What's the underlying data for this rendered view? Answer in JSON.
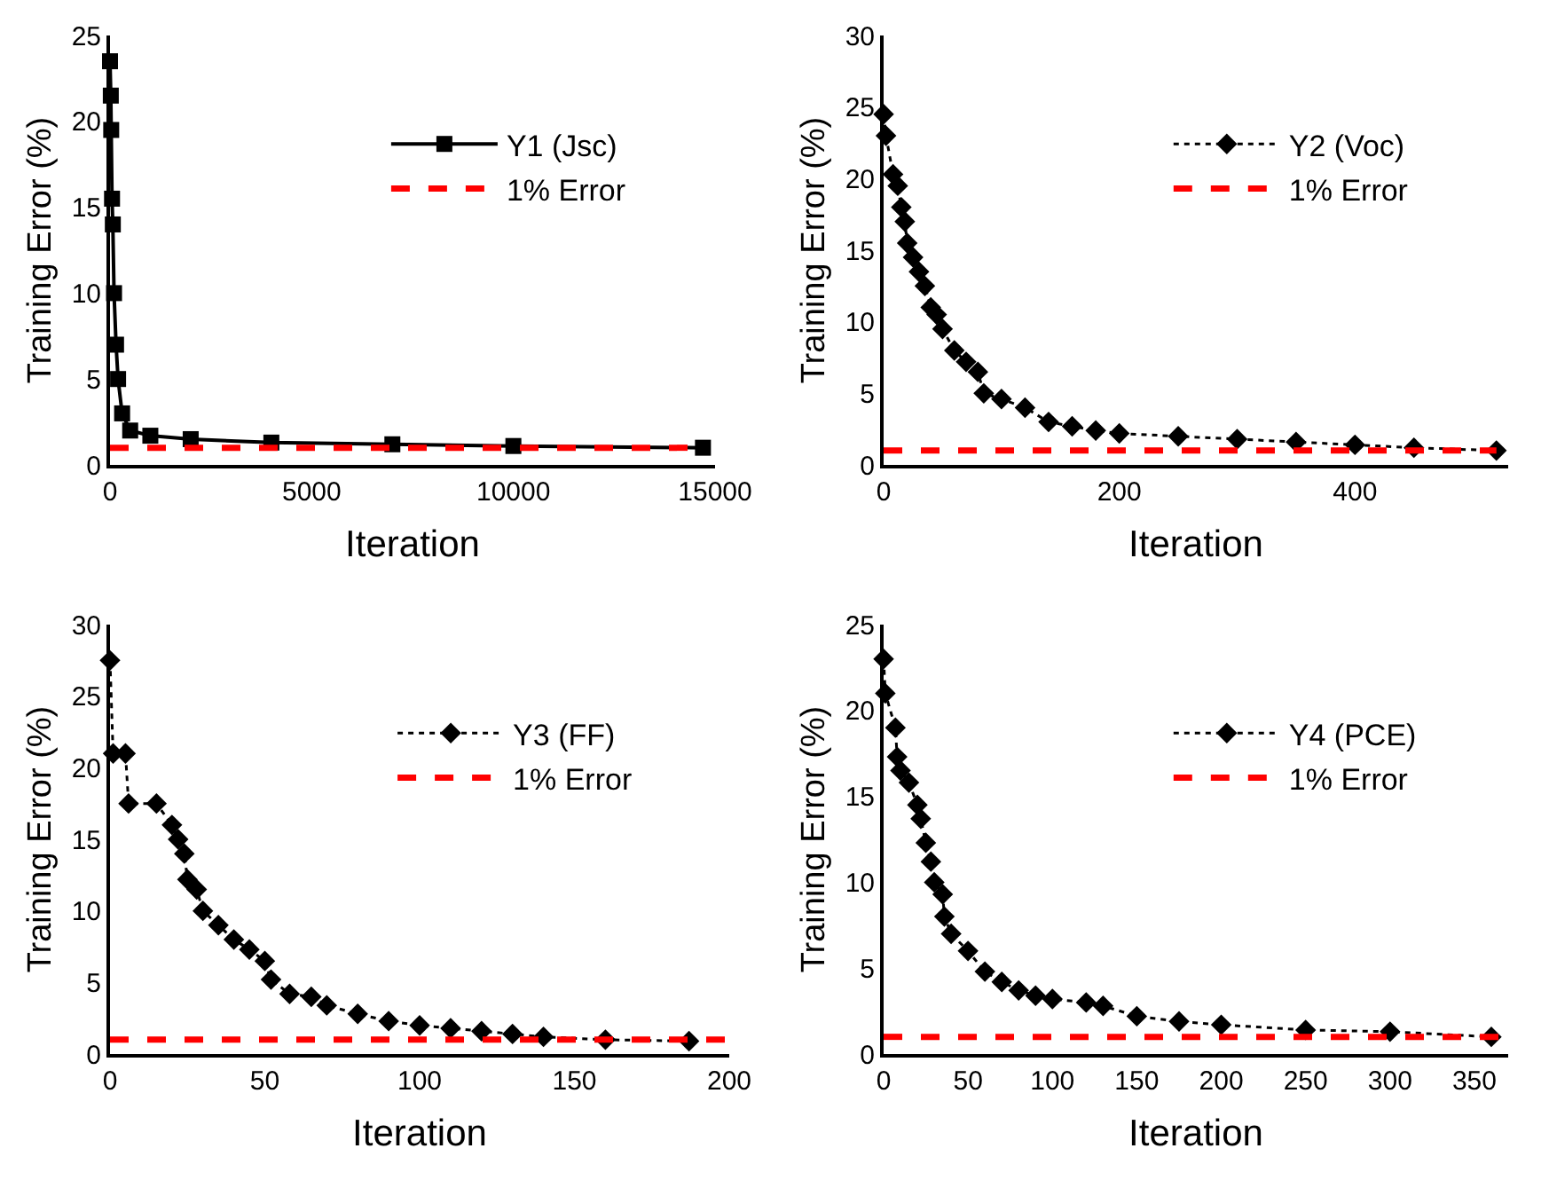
{
  "chart_data": [
    {
      "type": "line",
      "xlabel": "Iteration",
      "ylabel": "Training Error (%)",
      "xlim": [
        0,
        15000
      ],
      "xticks": [
        0,
        5000,
        10000,
        15000
      ],
      "ylim": [
        0,
        25
      ],
      "yticks": [
        0,
        5,
        10,
        15,
        20,
        25
      ],
      "grid": false,
      "legend": "top right",
      "series": [
        {
          "name": "Y1 (Jsc)",
          "color": "#000000",
          "marker": "square",
          "line_style": "solid",
          "x": [
            0,
            20,
            30,
            50,
            70,
            100,
            150,
            200,
            300,
            500,
            1000,
            2000,
            4000,
            7000,
            10000,
            14700
          ],
          "values": [
            23.5,
            21.5,
            19.5,
            15.5,
            14,
            10,
            7,
            5,
            3,
            2,
            1.7,
            1.5,
            1.3,
            1.2,
            1.1,
            1.0
          ]
        },
        {
          "name": "1% Error",
          "color": "#ff0000",
          "marker": "none",
          "line_style": "dashed",
          "x": [
            0,
            14700
          ],
          "values": [
            1,
            1
          ]
        }
      ]
    },
    {
      "type": "line",
      "xlabel": "Iteration",
      "ylabel": "Training Error (%)",
      "xlim": [
        0,
        530
      ],
      "xticks": [
        0,
        200,
        400
      ],
      "ylim": [
        0,
        30
      ],
      "yticks": [
        0,
        5,
        10,
        15,
        20,
        25,
        30
      ],
      "grid": false,
      "legend": "top right",
      "series": [
        {
          "name": "Y2 (Voc)",
          "color": "#000000",
          "marker": "diamond",
          "line_style": "dotted",
          "x": [
            0,
            2,
            8,
            12,
            15,
            18,
            20,
            25,
            30,
            35,
            40,
            45,
            50,
            60,
            70,
            80,
            85,
            100,
            120,
            140,
            160,
            180,
            200,
            250,
            300,
            350,
            400,
            450,
            520
          ],
          "values": [
            24.5,
            23,
            20.3,
            19.5,
            18,
            17,
            15.5,
            14.5,
            13.5,
            12.5,
            11,
            10.5,
            9.5,
            8,
            7.2,
            6.5,
            5,
            4.6,
            4,
            3,
            2.7,
            2.4,
            2.2,
            2,
            1.8,
            1.6,
            1.4,
            1.2,
            1.0
          ]
        },
        {
          "name": "1% Error",
          "color": "#ff0000",
          "marker": "none",
          "line_style": "dashed",
          "x": [
            0,
            520
          ],
          "values": [
            1,
            1
          ]
        }
      ]
    },
    {
      "type": "line",
      "xlabel": "Iteration",
      "ylabel": "Training Error (%)",
      "xlim": [
        0,
        200
      ],
      "xticks": [
        0,
        50,
        100,
        150,
        200
      ],
      "ylim": [
        0,
        30
      ],
      "yticks": [
        0,
        5,
        10,
        15,
        20,
        25,
        30
      ],
      "grid": false,
      "legend": "top right",
      "series": [
        {
          "name": "Y3 (FF)",
          "color": "#000000",
          "marker": "diamond",
          "line_style": "dotted",
          "x": [
            0,
            1,
            5,
            6,
            15,
            20,
            22,
            24,
            25,
            28,
            30,
            35,
            40,
            45,
            50,
            52,
            58,
            65,
            70,
            80,
            90,
            100,
            110,
            120,
            130,
            140,
            160,
            187
          ],
          "values": [
            27.5,
            21,
            21,
            17.5,
            17.5,
            16,
            15,
            14,
            12.2,
            11.5,
            10,
            9,
            8,
            7.3,
            6.5,
            5.2,
            4.2,
            4,
            3.4,
            2.8,
            2.3,
            2,
            1.8,
            1.6,
            1.4,
            1.2,
            1.0,
            0.9
          ]
        },
        {
          "name": "1% Error",
          "color": "#ff0000",
          "marker": "none",
          "line_style": "dashed",
          "x": [
            0,
            200
          ],
          "values": [
            1,
            1
          ]
        }
      ]
    },
    {
      "type": "line",
      "xlabel": "Iteration",
      "ylabel": "Training Error (%)",
      "xlim": [
        0,
        370
      ],
      "xticks": [
        0,
        50,
        100,
        150,
        200,
        250,
        300,
        350
      ],
      "ylim": [
        0,
        25
      ],
      "yticks": [
        0,
        5,
        10,
        15,
        20,
        25
      ],
      "grid": false,
      "legend": "top right",
      "series": [
        {
          "name": "Y4 (PCE)",
          "color": "#000000",
          "marker": "diamond",
          "line_style": "dotted",
          "x": [
            0,
            1,
            7,
            8,
            10,
            15,
            20,
            22,
            25,
            28,
            30,
            35,
            36,
            40,
            50,
            60,
            70,
            80,
            90,
            100,
            120,
            130,
            150,
            175,
            200,
            250,
            300,
            360
          ],
          "values": [
            23,
            21,
            19,
            17.3,
            16.5,
            15.8,
            14.5,
            13.7,
            12.3,
            11.2,
            10,
            9.3,
            8,
            7,
            6,
            4.8,
            4.2,
            3.7,
            3.4,
            3.2,
            3,
            2.8,
            2.2,
            1.9,
            1.7,
            1.4,
            1.3,
            1.0
          ]
        },
        {
          "name": "1% Error",
          "color": "#ff0000",
          "marker": "none",
          "line_style": "dashed",
          "x": [
            0,
            370
          ],
          "values": [
            1,
            1
          ]
        }
      ]
    }
  ]
}
